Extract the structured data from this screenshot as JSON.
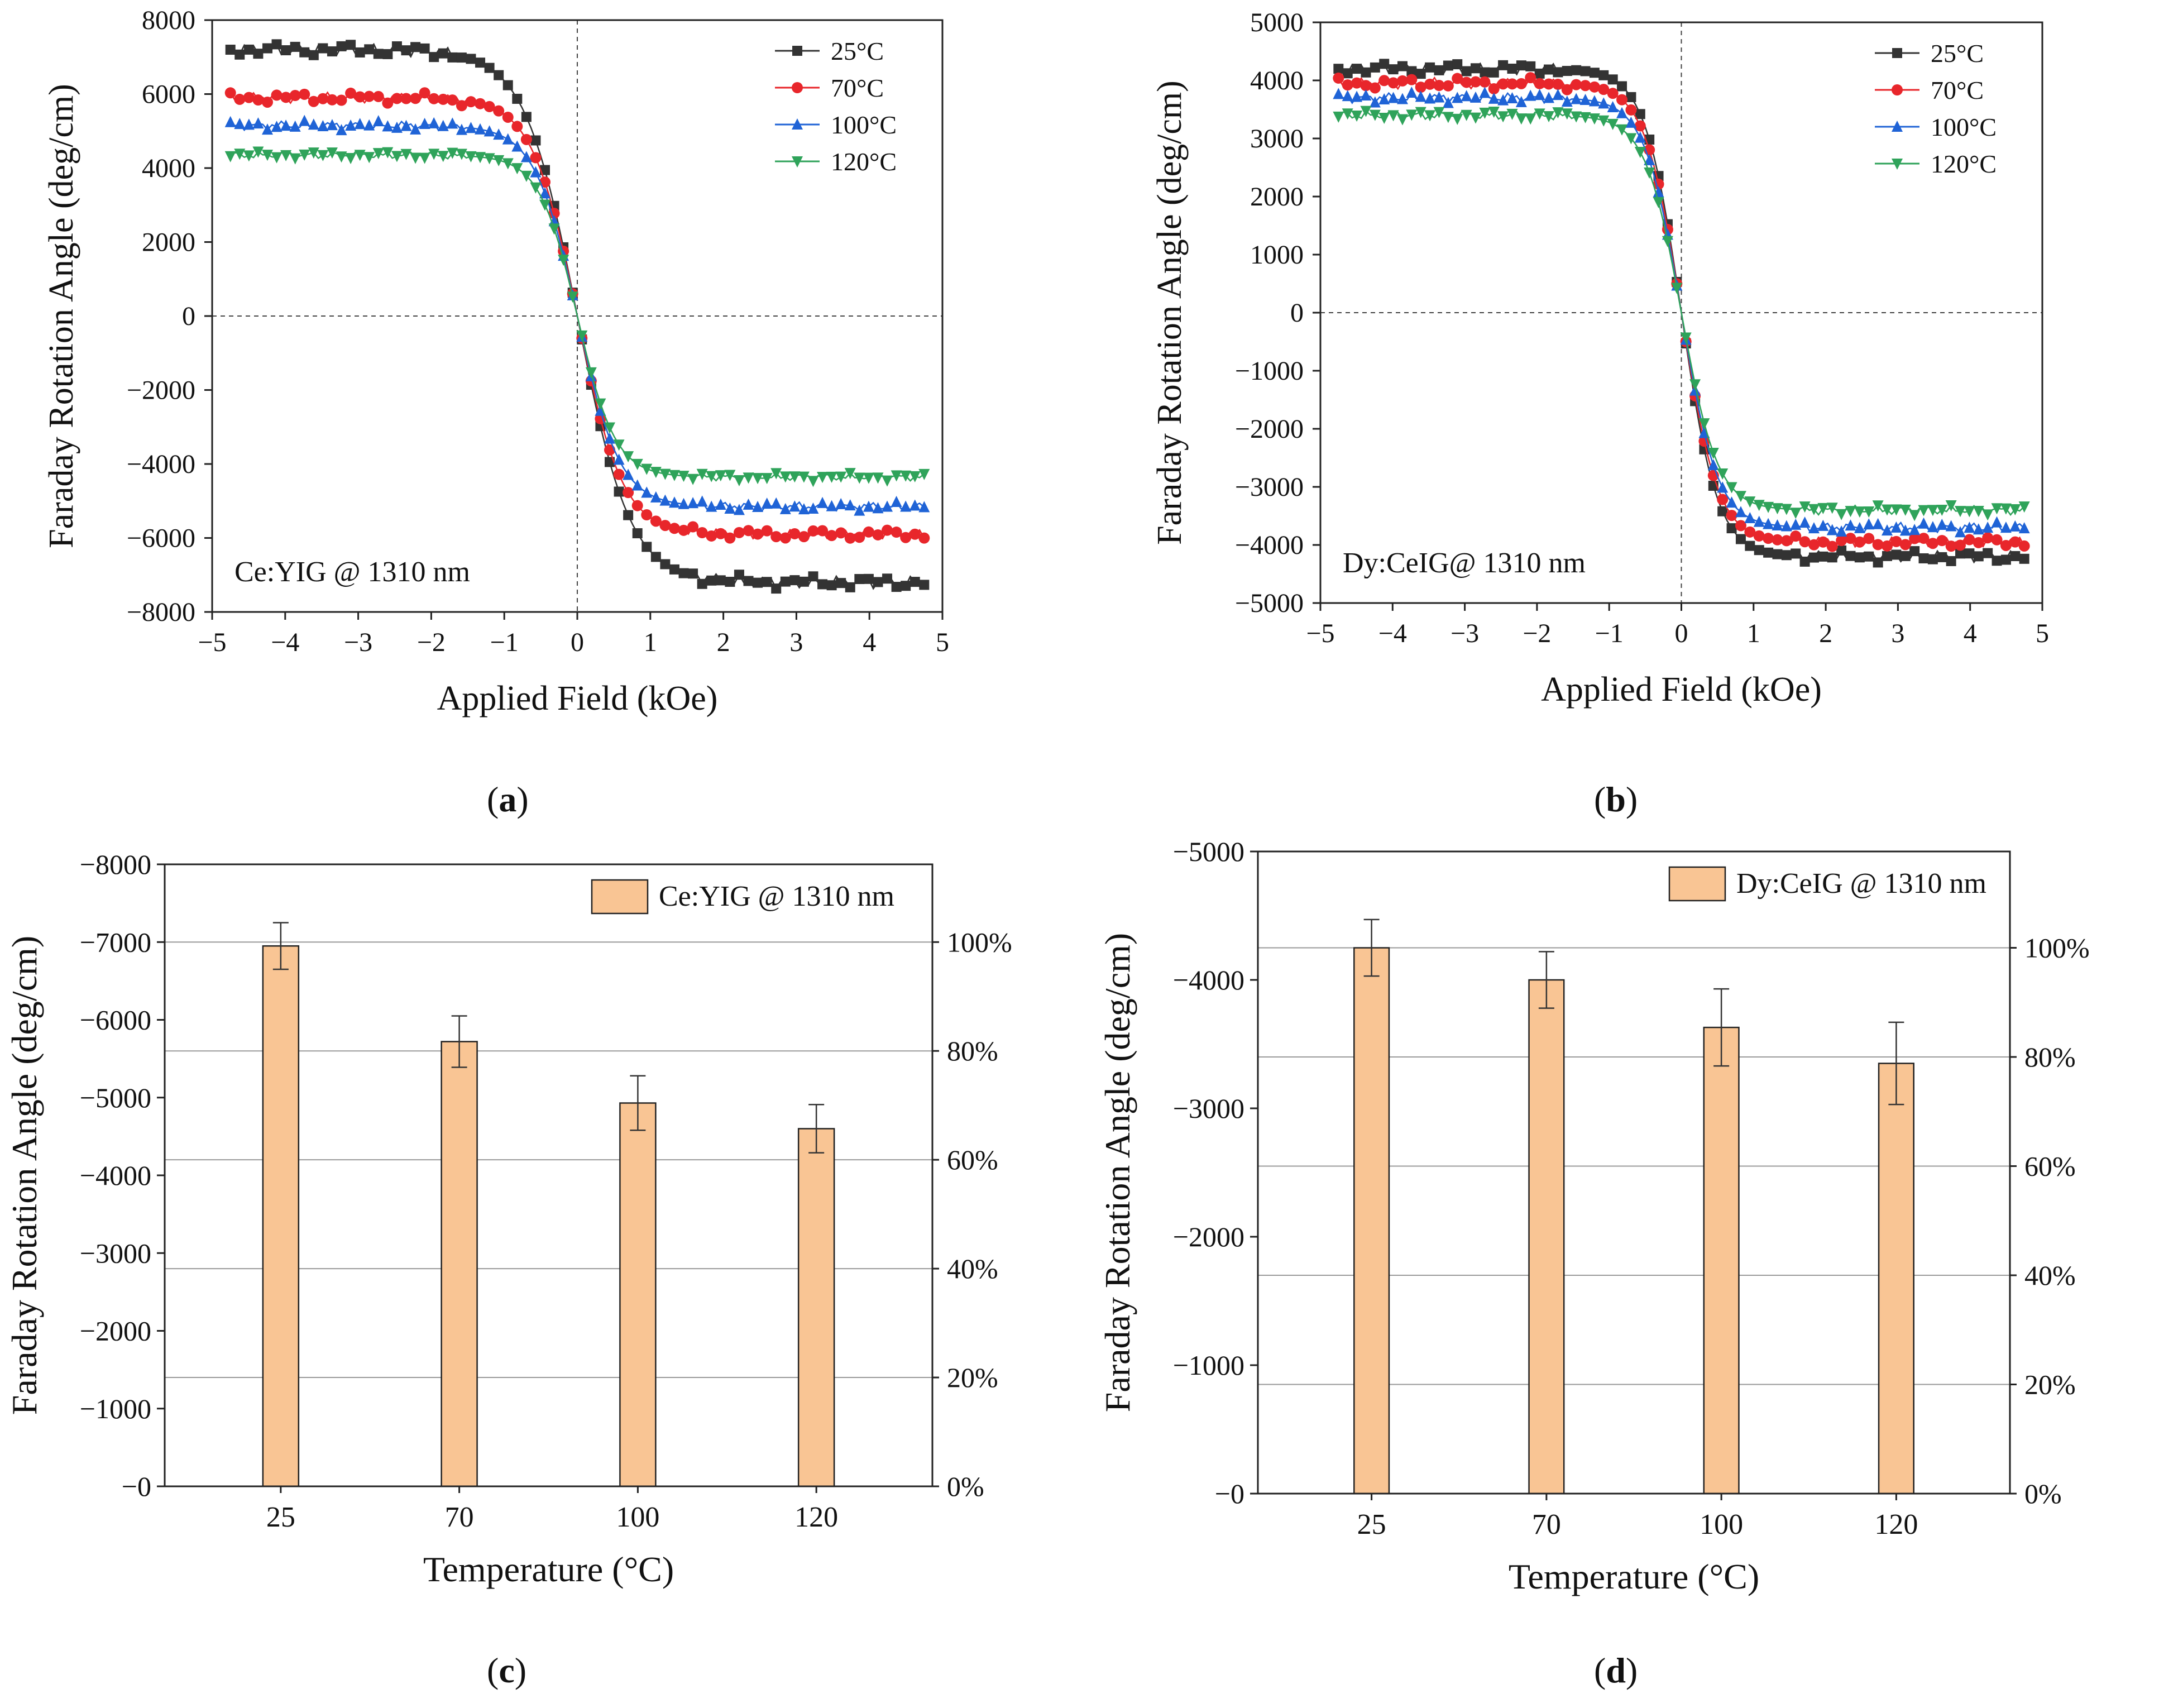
{
  "panel_labels": {
    "a": "a",
    "b": "b",
    "c": "c",
    "d": "d"
  },
  "chart_data": [
    {
      "id": "a",
      "type": "line",
      "title": "",
      "xlabel": "Applied Field (kOe)",
      "ylabel": "Faraday Rotation Angle (deg/cm)",
      "xlim": [
        -5,
        5
      ],
      "ylim": [
        -8000,
        8000
      ],
      "xticks": [
        -5,
        -4,
        -3,
        -2,
        -1,
        0,
        1,
        2,
        3,
        4,
        5
      ],
      "yticks": [
        -8000,
        -6000,
        -4000,
        -2000,
        0,
        2000,
        4000,
        6000,
        8000
      ],
      "annotation": "Ce:YIG @ 1310 nm",
      "legend_position": "top-right",
      "series": [
        {
          "name": "25°C",
          "color": "#333333",
          "marker": "square",
          "sat": 7200,
          "width": 0.72
        },
        {
          "name": "70°C",
          "color": "#e8262b",
          "marker": "circle",
          "sat": 5900,
          "width": 0.62
        },
        {
          "name": "100°C",
          "color": "#1f63d6",
          "marker": "triangle-up",
          "sat": 5150,
          "width": 0.58
        },
        {
          "name": "120°C",
          "color": "#2fa35a",
          "marker": "triangle-down",
          "sat": 4350,
          "width": 0.52
        }
      ]
    },
    {
      "id": "b",
      "type": "line",
      "title": "",
      "xlabel": "Applied Field (kOe)",
      "ylabel": "Faraday Rotation Angle (deg/cm)",
      "xlim": [
        -5,
        5
      ],
      "ylim": [
        -5000,
        5000
      ],
      "xticks": [
        -5,
        -4,
        -3,
        -2,
        -1,
        0,
        1,
        2,
        3,
        4,
        5
      ],
      "yticks": [
        -5000,
        -4000,
        -3000,
        -2000,
        -1000,
        0,
        1000,
        2000,
        3000,
        4000,
        5000
      ],
      "annotation": "Dy:CeIG@ 1310 nm",
      "legend_position": "top-right",
      "series": [
        {
          "name": "25°C",
          "color": "#333333",
          "marker": "square",
          "sat": 4200,
          "width": 0.5
        },
        {
          "name": "70°C",
          "color": "#e8262b",
          "marker": "circle",
          "sat": 3950,
          "width": 0.5
        },
        {
          "name": "100°C",
          "color": "#1f63d6",
          "marker": "triangle-up",
          "sat": 3700,
          "width": 0.5
        },
        {
          "name": "120°C",
          "color": "#2fa35a",
          "marker": "triangle-down",
          "sat": 3400,
          "width": 0.5
        }
      ]
    },
    {
      "id": "c",
      "type": "bar",
      "title": "",
      "xlabel": "Temperature (°C)",
      "ylabel": "Faraday Rotation Angle (deg/cm)",
      "categories": [
        "25",
        "70",
        "100",
        "120"
      ],
      "values": [
        -6950,
        -5720,
        -4930,
        -4600
      ],
      "errors": [
        300,
        330,
        350,
        310
      ],
      "ylim": [
        0,
        -8000
      ],
      "yticks": [
        0,
        -1000,
        -2000,
        -3000,
        -4000,
        -5000,
        -6000,
        -7000,
        -8000
      ],
      "ytick_labels": [
        "−0",
        "−1000",
        "−2000",
        "−3000",
        "−4000",
        "−5000",
        "−6000",
        "−7000",
        "−8000"
      ],
      "y2_max_value": -7000,
      "y2_ticks": [
        "0%",
        "20%",
        "40%",
        "60%",
        "80%",
        "100%"
      ],
      "legend": "Ce:YIG @ 1310 nm",
      "legend_position": "top-right",
      "bar_color": "#f9c594"
    },
    {
      "id": "d",
      "type": "bar",
      "title": "",
      "xlabel": "Temperature (°C)",
      "ylabel": "Faraday Rotation Angle (deg/cm)",
      "categories": [
        "25",
        "70",
        "100",
        "120"
      ],
      "values": [
        -4250,
        -4000,
        -3630,
        -3350
      ],
      "errors": [
        220,
        220,
        300,
        320
      ],
      "ylim": [
        0,
        -5000
      ],
      "yticks": [
        0,
        -1000,
        -2000,
        -3000,
        -4000,
        -5000
      ],
      "ytick_labels": [
        "−0",
        "−1000",
        "−2000",
        "−3000",
        "−4000",
        "−5000"
      ],
      "y2_max_value": -4250,
      "y2_ticks": [
        "0%",
        "20%",
        "40%",
        "60%",
        "80%",
        "100%"
      ],
      "legend": "Dy:CeIG @ 1310 nm",
      "legend_position": "top-right",
      "bar_color": "#f9c594"
    }
  ]
}
